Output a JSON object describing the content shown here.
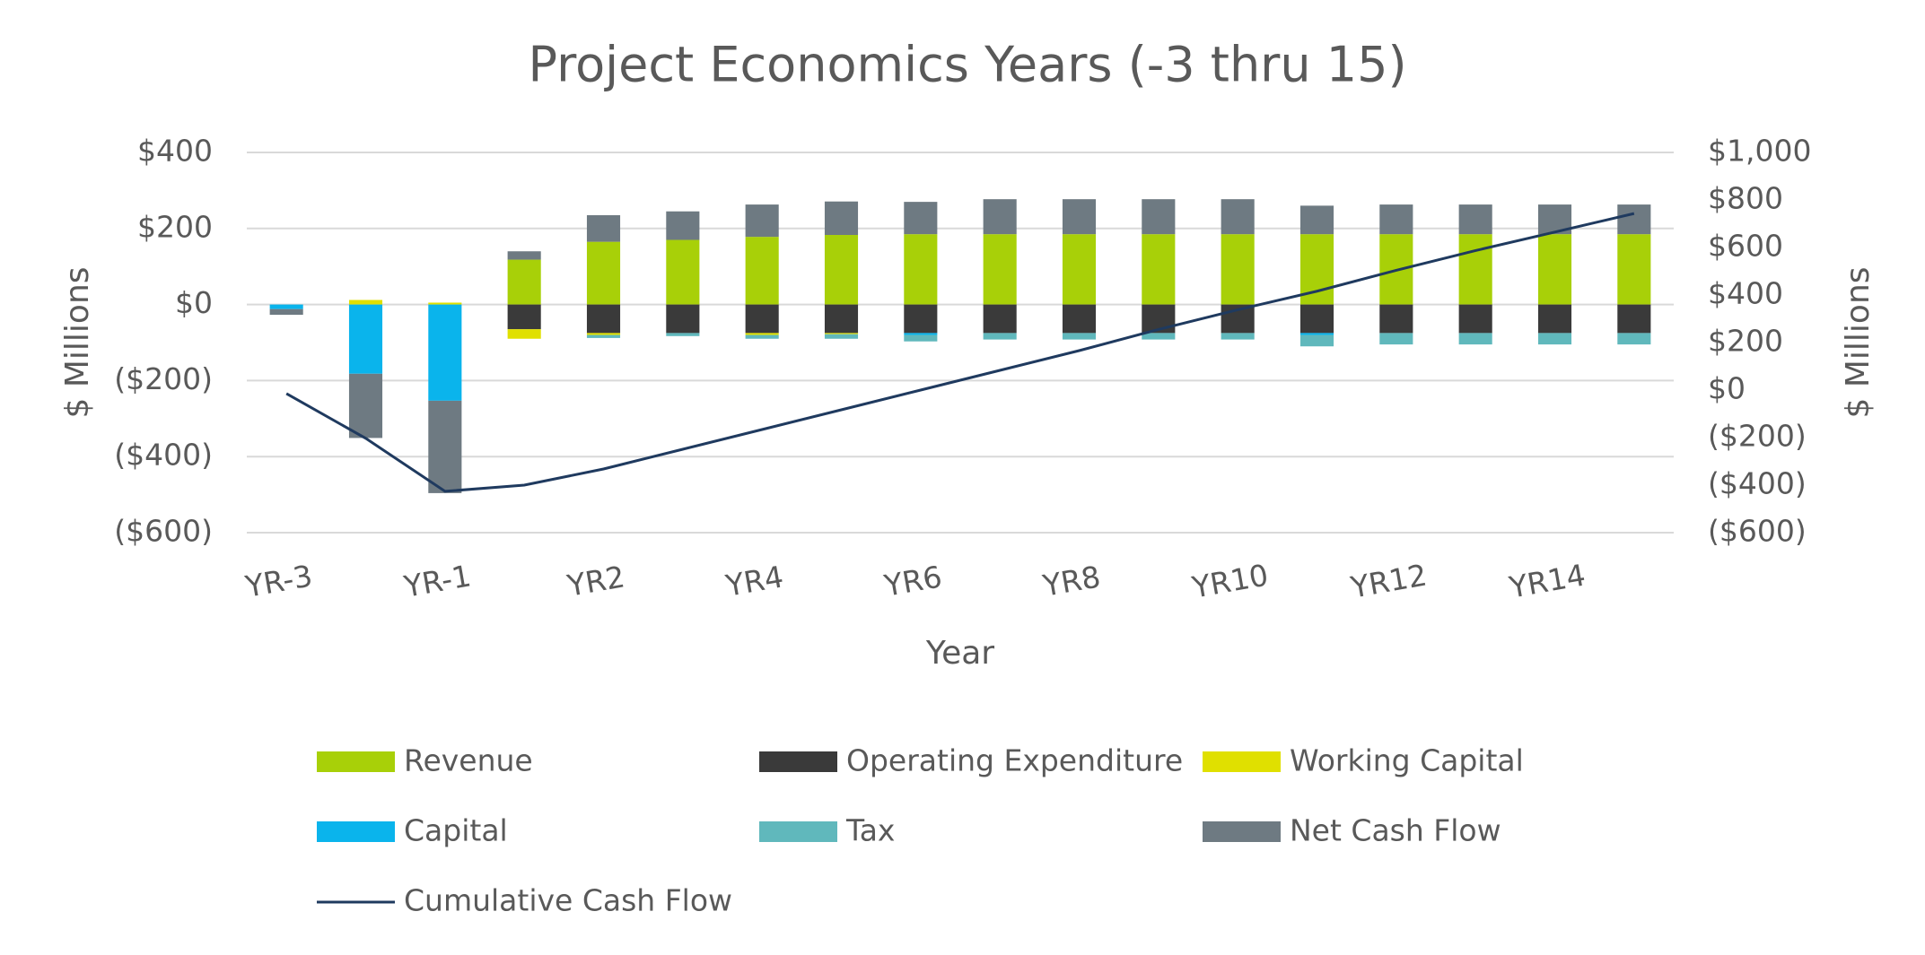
{
  "chart_data": {
    "type": "bar",
    "stacked": true,
    "title": "Project Economics Years (-3 thru 15)",
    "x_label": "Year",
    "y_label": "$ Millions",
    "y2_label": "$ Millions",
    "categories": [
      "YR-3",
      null,
      "YR-1",
      null,
      "YR2",
      null,
      "YR4",
      null,
      "YR6",
      null,
      "YR8",
      null,
      "YR10",
      null,
      "YR12",
      null,
      "YR14",
      null
    ],
    "ylim": [
      -600,
      400
    ],
    "yticks": [
      {
        "value": -600,
        "label": "($600)"
      },
      {
        "value": -400,
        "label": "($400)"
      },
      {
        "value": -200,
        "label": "($200)"
      },
      {
        "value": 0,
        "label": "$0"
      },
      {
        "value": 200,
        "label": "$200"
      },
      {
        "value": 400,
        "label": "$400"
      }
    ],
    "y2lim": [
      -600,
      1000
    ],
    "y2ticks": [
      {
        "value": -600,
        "label": "($600)"
      },
      {
        "value": -400,
        "label": "($400)"
      },
      {
        "value": -200,
        "label": "($200)"
      },
      {
        "value": 0,
        "label": "$0"
      },
      {
        "value": 200,
        "label": "$200"
      },
      {
        "value": 400,
        "label": "$400"
      },
      {
        "value": 600,
        "label": "$600"
      },
      {
        "value": 800,
        "label": "$800"
      },
      {
        "value": 1000,
        "label": "$1,000"
      }
    ],
    "grid": true,
    "series": [
      {
        "name": "Revenue",
        "color": "#a8d008",
        "values": [
          0,
          0,
          0,
          118,
          165,
          170,
          178,
          183,
          185,
          185,
          185,
          185,
          185,
          185,
          185,
          185,
          185,
          185
        ]
      },
      {
        "name": "Operating Expenditure",
        "color": "#3a3a3a",
        "values": [
          0,
          0,
          0,
          -65,
          -75,
          -75,
          -75,
          -75,
          -75,
          -75,
          -75,
          -75,
          -75,
          -75,
          -75,
          -75,
          -75,
          -75
        ]
      },
      {
        "name": "Working Capital",
        "color": "#e0e000",
        "values": [
          0,
          12,
          5,
          -25,
          -5,
          0,
          -5,
          -3,
          0,
          0,
          0,
          0,
          0,
          0,
          0,
          0,
          0,
          0
        ]
      },
      {
        "name": "Capital",
        "color": "#0ab4ec",
        "values": [
          -12,
          -182,
          -253,
          0,
          0,
          0,
          0,
          0,
          -5,
          0,
          0,
          0,
          0,
          -5,
          0,
          0,
          0,
          0
        ]
      },
      {
        "name": "Tax",
        "color": "#60b8bc",
        "values": [
          0,
          0,
          0,
          0,
          -8,
          -8,
          -10,
          -12,
          -17,
          -17,
          -17,
          -17,
          -17,
          -30,
          -30,
          -30,
          -30,
          -30
        ]
      },
      {
        "name": "Net Cash Flow",
        "color": "#6e7a82",
        "values": [
          -15,
          -169,
          -243,
          22,
          70,
          75,
          85,
          88,
          85,
          92,
          92,
          92,
          92,
          75,
          78,
          78,
          78,
          78
        ]
      },
      {
        "name": "Cumulative Cash Flow",
        "color": "#1f3a5f",
        "type": "line",
        "axis": "y2",
        "values": [
          -15,
          -203,
          -426,
          -400,
          -332,
          -249,
          -166,
          -83,
          0,
          83,
          166,
          255,
          338,
          416,
          504,
          587,
          665,
          743
        ]
      }
    ]
  }
}
